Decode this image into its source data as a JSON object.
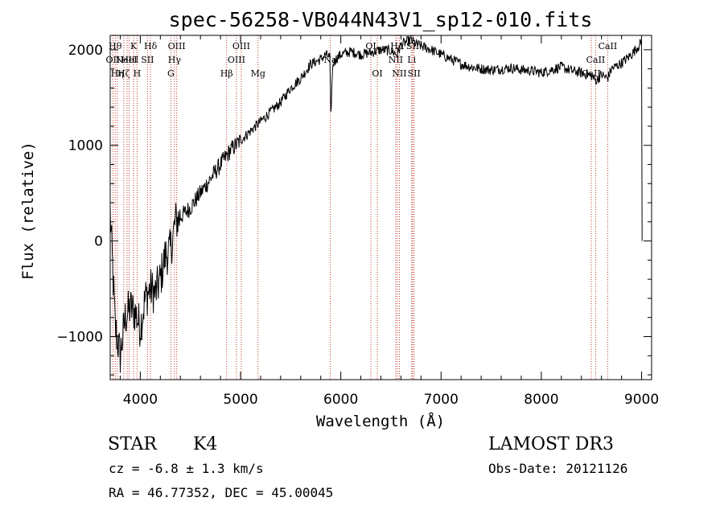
{
  "chart_data": {
    "type": "line",
    "title": "spec-56258-VB044N43V1_sp12-010.fits",
    "xlabel": "Wavelength (Å)",
    "ylabel": "Flux (relative)",
    "xlim": [
      3700,
      9100
    ],
    "ylim": [
      -1450,
      2150
    ],
    "xticks": [
      4000,
      5000,
      6000,
      7000,
      8000,
      9000
    ],
    "yticks": [
      -1000,
      0,
      1000,
      2000
    ],
    "grid": false,
    "series": [
      {
        "name": "flux",
        "x": [
          3700,
          3750,
          3800,
          3850,
          3900,
          3950,
          4000,
          4050,
          4100,
          4150,
          4200,
          4250,
          4300,
          4350,
          4400,
          4450,
          4500,
          4600,
          4700,
          4800,
          4900,
          5000,
          5100,
          5200,
          5300,
          5400,
          5500,
          5600,
          5700,
          5800,
          5850,
          5890,
          5900,
          5920,
          5950,
          6000,
          6100,
          6200,
          6300,
          6400,
          6500,
          6560,
          6600,
          6650,
          6700,
          6750,
          6800,
          6900,
          7000,
          7100,
          7200,
          7300,
          7400,
          7500,
          7600,
          7700,
          7800,
          7900,
          8000,
          8100,
          8200,
          8300,
          8400,
          8500,
          8540,
          8560,
          8600,
          8660,
          8700,
          8800,
          8900,
          9000,
          9010
        ],
        "y": [
          300,
          -900,
          -1200,
          -800,
          -700,
          -750,
          -900,
          -600,
          -500,
          -550,
          -400,
          -150,
          -100,
          200,
          250,
          300,
          350,
          500,
          650,
          800,
          950,
          1050,
          1150,
          1250,
          1350,
          1450,
          1600,
          1700,
          1850,
          1900,
          1950,
          1920,
          1300,
          1850,
          1900,
          1950,
          1980,
          1950,
          1970,
          2000,
          1990,
          1950,
          2050,
          2080,
          2100,
          2060,
          2040,
          2000,
          1950,
          1900,
          1850,
          1820,
          1800,
          1790,
          1800,
          1810,
          1790,
          1780,
          1760,
          1790,
          1820,
          1780,
          1760,
          1730,
          1680,
          1690,
          1740,
          1700,
          1800,
          1860,
          1950,
          2080,
          0
        ]
      }
    ],
    "lines": [
      {
        "wave": 3727,
        "label": "OII",
        "row": 1
      },
      {
        "wave": 3750,
        "label": "Hθ",
        "row": 0
      },
      {
        "wave": 3771,
        "label": "Hη",
        "row": 2
      },
      {
        "wave": 3835,
        "label": "Hζ",
        "row": 2
      },
      {
        "wave": 3869,
        "label": "NeIII",
        "row": 1
      },
      {
        "wave": 3889,
        "label": "HeI",
        "row": 1
      },
      {
        "wave": 3934,
        "label": "K",
        "row": 0
      },
      {
        "wave": 3968,
        "label": "H",
        "row": 2
      },
      {
        "wave": 4072,
        "label": "SII",
        "row": 1
      },
      {
        "wave": 4102,
        "label": "Hδ",
        "row": 0
      },
      {
        "wave": 4305,
        "label": "G",
        "row": 2
      },
      {
        "wave": 4341,
        "label": "Hγ",
        "row": 1
      },
      {
        "wave": 4363,
        "label": "OIII",
        "row": 0
      },
      {
        "wave": 4861,
        "label": "Hβ",
        "row": 2
      },
      {
        "wave": 4959,
        "label": "OIII",
        "row": 1
      },
      {
        "wave": 5007,
        "label": "OIII",
        "row": 0
      },
      {
        "wave": 5175,
        "label": "Mg",
        "row": 2
      },
      {
        "wave": 5894,
        "label": "Na",
        "row": 1
      },
      {
        "wave": 6300,
        "label": "OI",
        "row": 0
      },
      {
        "wave": 6364,
        "label": "OI",
        "row": 2
      },
      {
        "wave": 6548,
        "label": "NII",
        "row": 1
      },
      {
        "wave": 6563,
        "label": "Hα",
        "row": 0
      },
      {
        "wave": 6584,
        "label": "NII",
        "row": 2
      },
      {
        "wave": 6707,
        "label": "Li",
        "row": 1
      },
      {
        "wave": 6717,
        "label": "SII",
        "row": 0
      },
      {
        "wave": 6731,
        "label": "SII",
        "row": 2
      },
      {
        "wave": 8498,
        "label": "CaII",
        "row": 2
      },
      {
        "wave": 8542,
        "label": "CaII",
        "row": 1
      },
      {
        "wave": 8662,
        "label": "CaII",
        "row": 0
      }
    ]
  },
  "info": {
    "class": "STAR",
    "subclass": "K4",
    "redshift": "cz = -6.8 ± 1.3 km/s",
    "coords": "RA =  46.77352, DEC =  45.00045",
    "survey": "LAMOST DR3",
    "obsdate": "Obs-Date: 20121126"
  }
}
